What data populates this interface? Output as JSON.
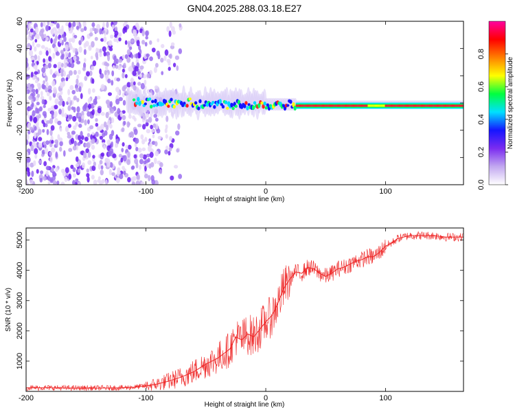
{
  "title": "GN04.2025.288.03.18.E27",
  "chart_data": [
    {
      "type": "heatmap",
      "title": "GN04.2025.288.03.18.E27",
      "xlabel": "Height of straight line (km)",
      "ylabel": "Frequency (Hz)",
      "xlim": [
        -200,
        165
      ],
      "ylim": [
        -60,
        60
      ],
      "xticks": [
        -200,
        -100,
        0,
        100
      ],
      "yticks": [
        -60,
        -40,
        -20,
        0,
        20,
        40,
        60
      ],
      "colorbar": {
        "label": "Normalized spectral amplitude",
        "range": [
          0,
          1
        ],
        "ticks": [
          "0.0",
          "0.2",
          "0.4",
          "0.6",
          "0.8"
        ],
        "tick_values": [
          0,
          0.2,
          0.4,
          0.6,
          0.8
        ],
        "colors": [
          "#ffffff",
          "#c2a8f0",
          "#7b2cf0",
          "#1515ff",
          "#00e0ff",
          "#00ff40",
          "#ffff00",
          "#ff8000",
          "#ff0000",
          "#ff00a0"
        ]
      },
      "features": {
        "noise_region_km": [
          -200,
          -80
        ],
        "signal_frequency_hz": 0,
        "signal_start_km": -110,
        "strong_band_start_km": 25
      }
    },
    {
      "type": "line",
      "xlabel": "Height of straight line (km)",
      "ylabel": "SNR (10 * v/v)",
      "xlim": [
        -200,
        165
      ],
      "ylim": [
        0,
        5400
      ],
      "xticks": [
        -200,
        -100,
        0,
        100
      ],
      "yticks": [
        1000,
        2000,
        3000,
        4000,
        5000
      ],
      "color": "#ee2222",
      "series": [
        {
          "name": "SNR",
          "x": [
            -200,
            -180,
            -160,
            -140,
            -120,
            -110,
            -100,
            -90,
            -80,
            -70,
            -60,
            -50,
            -40,
            -30,
            -25,
            -20,
            -15,
            -10,
            -5,
            0,
            5,
            10,
            15,
            20,
            25,
            30,
            35,
            40,
            45,
            50,
            55,
            60,
            65,
            70,
            75,
            80,
            85,
            90,
            95,
            100,
            105,
            110,
            115,
            120,
            130,
            140,
            150,
            165
          ],
          "values": [
            120,
            120,
            110,
            110,
            120,
            140,
            180,
            250,
            350,
            480,
            650,
            900,
            1100,
            1400,
            1800,
            1700,
            1900,
            1800,
            2050,
            2300,
            2500,
            2900,
            3400,
            3700,
            3950,
            3900,
            4100,
            4050,
            3900,
            3800,
            3900,
            4050,
            4100,
            4200,
            4300,
            4350,
            4450,
            4450,
            4600,
            4800,
            4900,
            5050,
            5100,
            5150,
            5150,
            5150,
            5100,
            5100
          ]
        }
      ]
    }
  ]
}
